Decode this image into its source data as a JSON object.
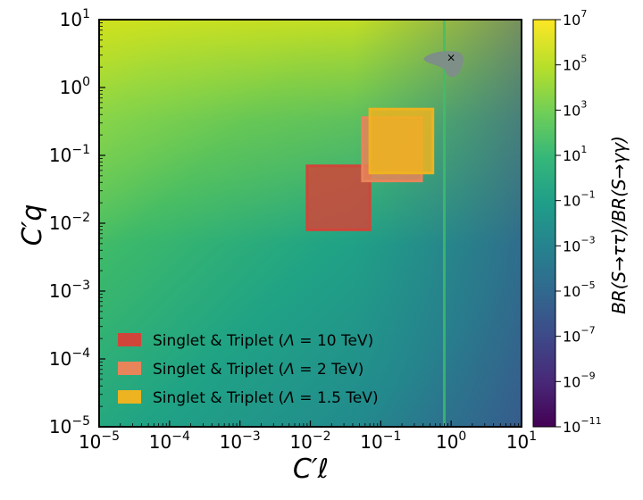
{
  "chart_data": {
    "type": "heatmap",
    "xscale": "log",
    "yscale": "log",
    "xlim": [
      1e-05,
      10
    ],
    "ylim": [
      1e-05,
      10
    ],
    "xlabel": "C′ℓ",
    "ylabel": "C′q",
    "x_ticks": [
      {
        "base": "10",
        "exp": "−5",
        "value": 1e-05
      },
      {
        "base": "10",
        "exp": "−4",
        "value": 0.0001
      },
      {
        "base": "10",
        "exp": "−3",
        "value": 0.001
      },
      {
        "base": "10",
        "exp": "−2",
        "value": 0.01
      },
      {
        "base": "10",
        "exp": "−1",
        "value": 0.1
      },
      {
        "base": "10",
        "exp": "0",
        "value": 1
      },
      {
        "base": "10",
        "exp": "1",
        "value": 10
      }
    ],
    "y_ticks": [
      {
        "base": "10",
        "exp": "−5",
        "value": 1e-05
      },
      {
        "base": "10",
        "exp": "−4",
        "value": 0.0001
      },
      {
        "base": "10",
        "exp": "−3",
        "value": 0.001
      },
      {
        "base": "10",
        "exp": "−2",
        "value": 0.01
      },
      {
        "base": "10",
        "exp": "−1",
        "value": 0.1
      },
      {
        "base": "10",
        "exp": "0",
        "value": 1
      },
      {
        "base": "10",
        "exp": "1",
        "value": 10
      }
    ],
    "colorbar": {
      "label": "BR(S→ττ)/BR(S→γγ)",
      "scale": "log",
      "range": [
        1e-11,
        10000000.0
      ],
      "colormap": "viridis",
      "ticks": [
        {
          "base": "10",
          "exp": "7",
          "value": 10000000.0
        },
        {
          "base": "10",
          "exp": "5",
          "value": 100000.0
        },
        {
          "base": "10",
          "exp": "3",
          "value": 1000.0
        },
        {
          "base": "10",
          "exp": "1",
          "value": 10.0
        },
        {
          "base": "10",
          "exp": "−1",
          "value": 0.1
        },
        {
          "base": "10",
          "exp": "−3",
          "value": 0.001
        },
        {
          "base": "10",
          "exp": "−5",
          "value": 1e-05
        },
        {
          "base": "10",
          "exp": "−7",
          "value": 1e-07
        },
        {
          "base": "10",
          "exp": "−9",
          "value": 1e-09
        },
        {
          "base": "10",
          "exp": "−11",
          "value": 1e-11
        }
      ]
    },
    "regions": [
      {
        "name": "Singlet & Triplet (Λ = 10 TeV)",
        "x": [
          0.009,
          0.07
        ],
        "y": [
          0.008,
          0.07
        ],
        "color": "#d0453a"
      },
      {
        "name": "Singlet & Triplet (Λ = 2 TeV)",
        "x": [
          0.055,
          0.38
        ],
        "y": [
          0.042,
          0.36
        ],
        "color": "#e8845a"
      },
      {
        "name": "Singlet & Triplet (Λ = 1.5 TeV)",
        "x": [
          0.07,
          0.55
        ],
        "y": [
          0.055,
          0.48
        ],
        "color": "#eeb320"
      }
    ],
    "contour_line_x": 0.8,
    "blob_label": "",
    "marker": {
      "symbol": "×",
      "x": 1.0,
      "y": 2.7
    },
    "legend": {
      "placement": "lower-left",
      "entries": [
        {
          "prefix": "Singlet & Triplet (",
          "symbol": "Λ",
          "value": " = 10",
          "unit": " TeV)"
        },
        {
          "prefix": "Singlet & Triplet (",
          "symbol": "Λ",
          "value": " = 2",
          "unit": " TeV)"
        },
        {
          "prefix": "Singlet & Triplet (",
          "symbol": "Λ",
          "value": " = 1.5",
          "unit": " TeV)"
        }
      ]
    }
  }
}
